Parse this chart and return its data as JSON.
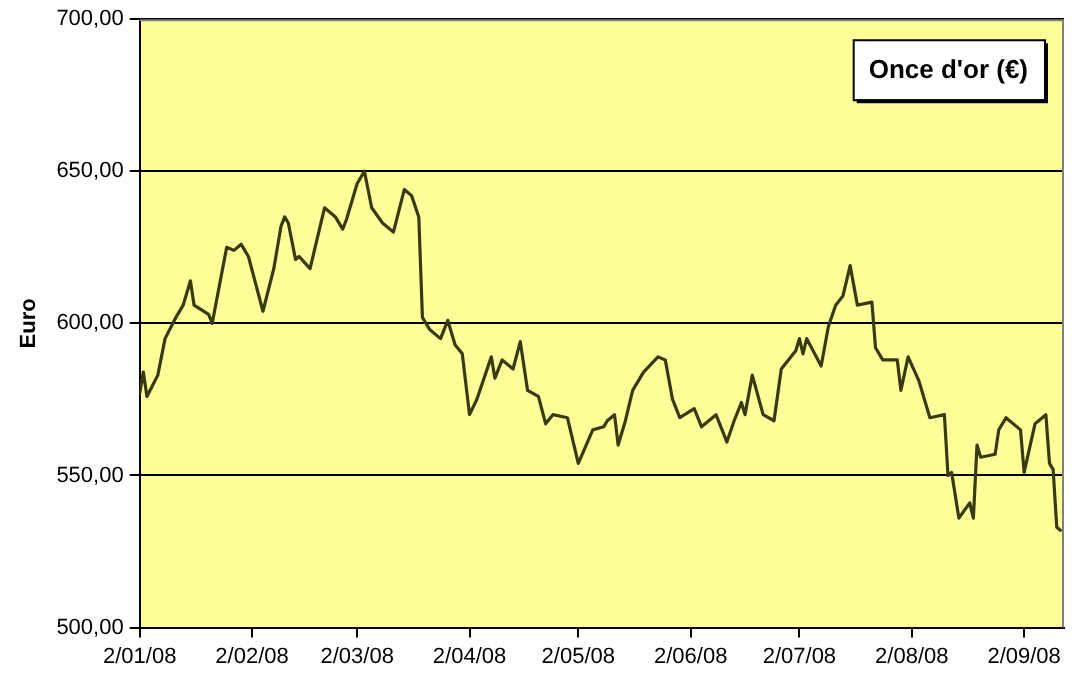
{
  "chart_data": {
    "type": "line",
    "title": "Once d'or (€)",
    "ylabel": "Euro",
    "x": [
      "2008-01-02",
      "2008-01-03",
      "2008-01-04",
      "2008-01-07",
      "2008-01-09",
      "2008-01-12",
      "2008-01-14",
      "2008-01-16",
      "2008-01-17",
      "2008-01-21",
      "2008-01-22",
      "2008-01-26",
      "2008-01-28",
      "2008-01-30",
      "2008-02-01",
      "2008-02-05",
      "2008-02-08",
      "2008-02-10",
      "2008-02-11",
      "2008-02-12",
      "2008-02-14",
      "2008-02-15",
      "2008-02-18",
      "2008-02-20",
      "2008-02-22",
      "2008-02-25",
      "2008-02-27",
      "2008-02-28",
      "2008-03-02",
      "2008-03-04",
      "2008-03-06",
      "2008-03-09",
      "2008-03-12",
      "2008-03-15",
      "2008-03-17",
      "2008-03-19",
      "2008-03-20",
      "2008-03-22",
      "2008-03-25",
      "2008-03-27",
      "2008-03-29",
      "2008-03-31",
      "2008-04-02",
      "2008-04-04",
      "2008-04-08",
      "2008-04-09",
      "2008-04-11",
      "2008-04-14",
      "2008-04-16",
      "2008-04-18",
      "2008-04-21",
      "2008-04-23",
      "2008-04-25",
      "2008-04-29",
      "2008-05-02",
      "2008-05-06",
      "2008-05-09",
      "2008-05-10",
      "2008-05-12",
      "2008-05-13",
      "2008-05-15",
      "2008-05-17",
      "2008-05-20",
      "2008-05-24",
      "2008-05-26",
      "2008-05-28",
      "2008-05-30",
      "2008-06-03",
      "2008-06-05",
      "2008-06-09",
      "2008-06-12",
      "2008-06-14",
      "2008-06-16",
      "2008-06-17",
      "2008-06-19",
      "2008-06-22",
      "2008-06-25",
      "2008-06-27",
      "2008-07-01",
      "2008-07-02",
      "2008-07-03",
      "2008-07-04",
      "2008-07-08",
      "2008-07-10",
      "2008-07-12",
      "2008-07-14",
      "2008-07-16",
      "2008-07-18",
      "2008-07-22",
      "2008-07-23",
      "2008-07-25",
      "2008-07-29",
      "2008-07-30",
      "2008-08-01",
      "2008-08-04",
      "2008-08-07",
      "2008-08-11",
      "2008-08-12",
      "2008-08-13",
      "2008-08-15",
      "2008-08-18",
      "2008-08-19",
      "2008-08-20",
      "2008-08-21",
      "2008-08-25",
      "2008-08-26",
      "2008-08-28",
      "2008-09-01",
      "2008-09-02",
      "2008-09-05",
      "2008-09-08",
      "2008-09-09",
      "2008-09-10",
      "2008-09-11",
      "2008-09-12"
    ],
    "series": [
      {
        "color": "#3a3a12",
        "values": [
          577,
          584,
          576,
          583,
          595,
          602,
          606,
          614,
          606,
          603,
          600,
          625,
          624,
          626,
          622,
          604,
          618,
          632,
          635,
          633,
          621,
          622,
          618,
          628,
          638,
          635,
          631,
          634,
          646,
          650,
          638,
          633,
          630,
          644,
          642,
          635,
          602,
          598,
          595,
          601,
          593,
          590,
          570,
          575,
          589,
          582,
          588,
          585,
          594,
          578,
          576,
          567,
          570,
          569,
          554,
          565,
          566,
          568,
          570,
          560,
          568,
          578,
          584,
          589,
          588,
          575,
          569,
          572,
          566,
          570,
          561,
          568,
          574,
          570,
          583,
          570,
          568,
          585,
          591,
          595,
          590,
          595,
          586,
          599,
          606,
          609,
          619,
          606,
          607,
          592,
          588,
          588,
          578,
          589,
          581,
          569,
          570,
          550,
          551,
          536,
          541,
          536,
          560,
          556,
          557,
          565,
          569,
          565,
          551,
          567,
          570,
          554,
          552,
          533,
          532
        ]
      }
    ],
    "xlim": [
      "2008-01-02",
      "2008-09-13"
    ],
    "xticks": [
      {
        "value": "2008-01-02",
        "label": "2/01/08"
      },
      {
        "value": "2008-02-02",
        "label": "2/02/08"
      },
      {
        "value": "2008-03-02",
        "label": "2/03/08"
      },
      {
        "value": "2008-04-02",
        "label": "2/04/08"
      },
      {
        "value": "2008-05-02",
        "label": "2/05/08"
      },
      {
        "value": "2008-06-02",
        "label": "2/06/08"
      },
      {
        "value": "2008-07-02",
        "label": "2/07/08"
      },
      {
        "value": "2008-08-02",
        "label": "2/08/08"
      },
      {
        "value": "2008-09-02",
        "label": "2/09/08"
      }
    ],
    "ylim": [
      500,
      700
    ],
    "yticks": [
      {
        "value": 500,
        "label": "500,00"
      },
      {
        "value": 550,
        "label": "550,00"
      },
      {
        "value": 600,
        "label": "600,00"
      },
      {
        "value": 650,
        "label": "650,00"
      },
      {
        "value": 700,
        "label": "700,00"
      }
    ],
    "grid": "y",
    "legend": false,
    "marker": "none",
    "line_style": "solid"
  }
}
